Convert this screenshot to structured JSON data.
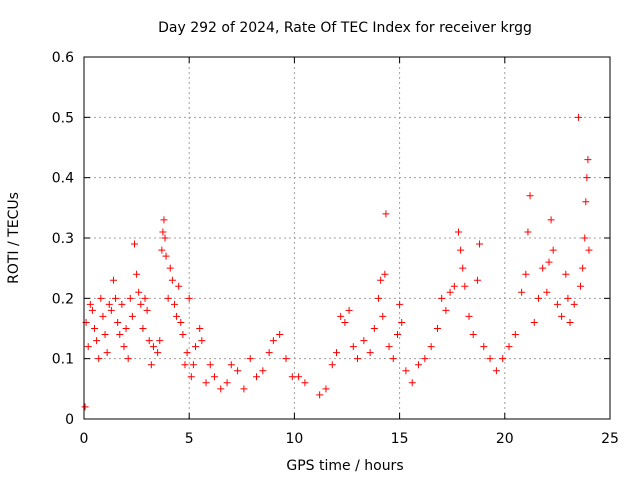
{
  "chart_data": {
    "type": "scatter",
    "title": "Day 292 of 2024, Rate Of TEC Index for receiver krgg",
    "xlabel": "GPS time / hours",
    "ylabel": "ROTI / TECUs",
    "xlim": [
      0,
      25
    ],
    "ylim": [
      0,
      0.6
    ],
    "xticks": [
      0,
      5,
      10,
      15,
      20,
      25
    ],
    "yticks": [
      0,
      0.1,
      0.2,
      0.3,
      0.4,
      0.5,
      0.6
    ],
    "xtick_labels": [
      "0",
      "5",
      "10",
      "15",
      "20",
      "25"
    ],
    "ytick_labels": [
      "0",
      "0.1",
      "0.2",
      "0.3",
      "0.4",
      "0.5",
      "0.6"
    ],
    "grid": true,
    "marker": "+",
    "color": "#ff0000",
    "series": [
      {
        "name": "ROTI",
        "points": [
          [
            0.05,
            0.02
          ],
          [
            0.1,
            0.16
          ],
          [
            0.2,
            0.12
          ],
          [
            0.3,
            0.19
          ],
          [
            0.4,
            0.18
          ],
          [
            0.5,
            0.15
          ],
          [
            0.6,
            0.13
          ],
          [
            0.7,
            0.1
          ],
          [
            0.8,
            0.2
          ],
          [
            0.9,
            0.17
          ],
          [
            1.0,
            0.14
          ],
          [
            1.1,
            0.11
          ],
          [
            1.2,
            0.19
          ],
          [
            1.3,
            0.18
          ],
          [
            1.4,
            0.23
          ],
          [
            1.5,
            0.2
          ],
          [
            1.6,
            0.16
          ],
          [
            1.7,
            0.14
          ],
          [
            1.8,
            0.19
          ],
          [
            1.9,
            0.12
          ],
          [
            2.0,
            0.15
          ],
          [
            2.1,
            0.1
          ],
          [
            2.2,
            0.2
          ],
          [
            2.3,
            0.17
          ],
          [
            2.4,
            0.29
          ],
          [
            2.5,
            0.24
          ],
          [
            2.6,
            0.21
          ],
          [
            2.7,
            0.19
          ],
          [
            2.8,
            0.15
          ],
          [
            2.9,
            0.2
          ],
          [
            3.0,
            0.18
          ],
          [
            3.1,
            0.13
          ],
          [
            3.2,
            0.09
          ],
          [
            3.3,
            0.12
          ],
          [
            3.5,
            0.11
          ],
          [
            3.6,
            0.13
          ],
          [
            3.7,
            0.28
          ],
          [
            3.75,
            0.31
          ],
          [
            3.8,
            0.33
          ],
          [
            3.85,
            0.3
          ],
          [
            3.9,
            0.27
          ],
          [
            4.0,
            0.2
          ],
          [
            4.1,
            0.25
          ],
          [
            4.2,
            0.23
          ],
          [
            4.3,
            0.19
          ],
          [
            4.4,
            0.17
          ],
          [
            4.5,
            0.22
          ],
          [
            4.6,
            0.16
          ],
          [
            4.7,
            0.14
          ],
          [
            4.8,
            0.09
          ],
          [
            4.9,
            0.11
          ],
          [
            5.0,
            0.2
          ],
          [
            5.1,
            0.07
          ],
          [
            5.2,
            0.09
          ],
          [
            5.3,
            0.12
          ],
          [
            5.5,
            0.15
          ],
          [
            5.6,
            0.13
          ],
          [
            5.8,
            0.06
          ],
          [
            6.0,
            0.09
          ],
          [
            6.2,
            0.07
          ],
          [
            6.5,
            0.05
          ],
          [
            6.8,
            0.06
          ],
          [
            7.0,
            0.09
          ],
          [
            7.3,
            0.08
          ],
          [
            7.6,
            0.05
          ],
          [
            7.9,
            0.1
          ],
          [
            8.2,
            0.07
          ],
          [
            8.5,
            0.08
          ],
          [
            8.8,
            0.11
          ],
          [
            9.0,
            0.13
          ],
          [
            9.3,
            0.14
          ],
          [
            9.6,
            0.1
          ],
          [
            9.9,
            0.07
          ],
          [
            10.2,
            0.07
          ],
          [
            10.5,
            0.06
          ],
          [
            11.2,
            0.04
          ],
          [
            11.5,
            0.05
          ],
          [
            11.8,
            0.09
          ],
          [
            12.0,
            0.11
          ],
          [
            12.2,
            0.17
          ],
          [
            12.4,
            0.16
          ],
          [
            12.6,
            0.18
          ],
          [
            12.8,
            0.12
          ],
          [
            13.0,
            0.1
          ],
          [
            13.3,
            0.13
          ],
          [
            13.6,
            0.11
          ],
          [
            13.8,
            0.15
          ],
          [
            14.0,
            0.2
          ],
          [
            14.1,
            0.23
          ],
          [
            14.2,
            0.17
          ],
          [
            14.3,
            0.24
          ],
          [
            14.35,
            0.34
          ],
          [
            14.5,
            0.12
          ],
          [
            14.7,
            0.1
          ],
          [
            14.9,
            0.14
          ],
          [
            15.0,
            0.19
          ],
          [
            15.1,
            0.16
          ],
          [
            15.3,
            0.08
          ],
          [
            15.6,
            0.06
          ],
          [
            15.9,
            0.09
          ],
          [
            16.2,
            0.1
          ],
          [
            16.5,
            0.12
          ],
          [
            16.8,
            0.15
          ],
          [
            17.0,
            0.2
          ],
          [
            17.2,
            0.18
          ],
          [
            17.4,
            0.21
          ],
          [
            17.6,
            0.22
          ],
          [
            17.8,
            0.31
          ],
          [
            17.9,
            0.28
          ],
          [
            18.0,
            0.25
          ],
          [
            18.1,
            0.22
          ],
          [
            18.3,
            0.17
          ],
          [
            18.5,
            0.14
          ],
          [
            18.7,
            0.23
          ],
          [
            18.8,
            0.29
          ],
          [
            19.0,
            0.12
          ],
          [
            19.3,
            0.1
          ],
          [
            19.6,
            0.08
          ],
          [
            19.9,
            0.1
          ],
          [
            20.2,
            0.12
          ],
          [
            20.5,
            0.14
          ],
          [
            20.8,
            0.21
          ],
          [
            21.0,
            0.24
          ],
          [
            21.1,
            0.31
          ],
          [
            21.2,
            0.37
          ],
          [
            21.4,
            0.16
          ],
          [
            21.6,
            0.2
          ],
          [
            21.8,
            0.25
          ],
          [
            22.0,
            0.21
          ],
          [
            22.1,
            0.26
          ],
          [
            22.2,
            0.33
          ],
          [
            22.3,
            0.28
          ],
          [
            22.5,
            0.19
          ],
          [
            22.7,
            0.17
          ],
          [
            22.9,
            0.24
          ],
          [
            23.0,
            0.2
          ],
          [
            23.1,
            0.16
          ],
          [
            23.3,
            0.19
          ],
          [
            23.5,
            0.5
          ],
          [
            23.6,
            0.22
          ],
          [
            23.7,
            0.25
          ],
          [
            23.8,
            0.3
          ],
          [
            23.85,
            0.36
          ],
          [
            23.9,
            0.4
          ],
          [
            23.95,
            0.43
          ],
          [
            24.0,
            0.28
          ]
        ]
      }
    ]
  }
}
